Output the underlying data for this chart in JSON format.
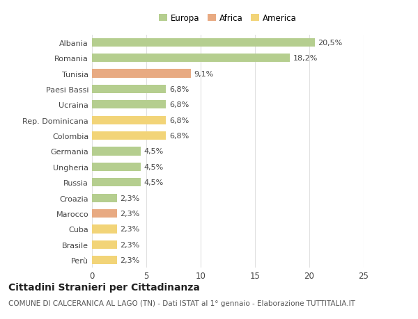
{
  "categories": [
    "Albania",
    "Romania",
    "Tunisia",
    "Paesi Bassi",
    "Ucraina",
    "Rep. Dominicana",
    "Colombia",
    "Germania",
    "Ungheria",
    "Russia",
    "Croazia",
    "Marocco",
    "Cuba",
    "Brasile",
    "Perù"
  ],
  "values": [
    20.5,
    18.2,
    9.1,
    6.8,
    6.8,
    6.8,
    6.8,
    4.5,
    4.5,
    4.5,
    2.3,
    2.3,
    2.3,
    2.3,
    2.3
  ],
  "labels": [
    "20,5%",
    "18,2%",
    "9,1%",
    "6,8%",
    "6,8%",
    "6,8%",
    "6,8%",
    "4,5%",
    "4,5%",
    "4,5%",
    "2,3%",
    "2,3%",
    "2,3%",
    "2,3%",
    "2,3%"
  ],
  "continent": [
    "Europa",
    "Europa",
    "Africa",
    "Europa",
    "Europa",
    "America",
    "America",
    "Europa",
    "Europa",
    "Europa",
    "Europa",
    "Africa",
    "America",
    "America",
    "America"
  ],
  "colors": {
    "Europa": "#b5ce8f",
    "Africa": "#e8aa82",
    "America": "#f2d478"
  },
  "legend_colors": {
    "Europa": "#b5ce8f",
    "Africa": "#e8aa82",
    "America": "#f2d478"
  },
  "xlim": [
    0,
    25
  ],
  "xticks": [
    0,
    5,
    10,
    15,
    20,
    25
  ],
  "title": "Cittadini Stranieri per Cittadinanza",
  "subtitle": "COMUNE DI CALCERANICA AL LAGO (TN) - Dati ISTAT al 1° gennaio - Elaborazione TUTTITALIA.IT",
  "background_color": "#ffffff",
  "bar_height": 0.55,
  "grid_color": "#e0e0e0",
  "text_color": "#444444",
  "title_fontsize": 10,
  "subtitle_fontsize": 7.5,
  "label_fontsize": 8,
  "tick_fontsize": 8.5,
  "value_fontsize": 8
}
